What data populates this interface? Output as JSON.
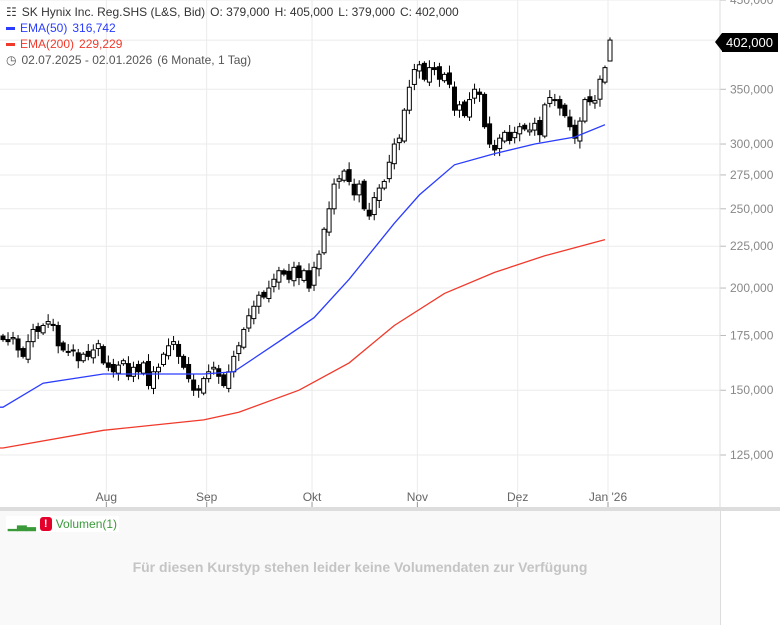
{
  "header": {
    "title": "SK Hynix Inc. Reg.SHS (L&S, Bid)",
    "open": "O: 379,000",
    "high": "H: 405,000",
    "low": "L: 379,000",
    "close": "C: 402,000",
    "ema50_label": "EMA(50)",
    "ema50_value": "316,742",
    "ema200_label": "EMA(200)",
    "ema200_value": "229,229",
    "range": "02.07.2025 - 02.01.2026",
    "range_desc": "(6 Monate, 1 Tag)"
  },
  "last_price": "402,000",
  "volume": {
    "label": "Volumen(1)",
    "message": "Für diesen Kurstyp stehen leider keine Volumendaten zur Verfügung"
  },
  "colors": {
    "ema50": "#2a3cff",
    "ema200": "#f0392b",
    "candle": "#000000"
  },
  "chart_data": {
    "type": "candlestick",
    "scale": "log",
    "ylim": [
      125000,
      450000
    ],
    "yticks": [
      125000,
      150000,
      175000,
      200000,
      225000,
      250000,
      275000,
      300000,
      350000,
      402000,
      450000
    ],
    "ytick_labels": [
      "125,000",
      "150,000",
      "175,000",
      "200,000",
      "225,000",
      "250,000",
      "275,000",
      "300,000",
      "350,000",
      "",
      "450,000"
    ],
    "xticks": [
      {
        "label": "Aug",
        "index": 21
      },
      {
        "label": "Sep",
        "index": 41
      },
      {
        "label": "Okt",
        "index": 62
      },
      {
        "label": "Nov",
        "index": 83
      },
      {
        "label": "Dez",
        "index": 103
      },
      {
        "label": "Jan '26",
        "index": 121
      }
    ],
    "close": [
      173,
      172,
      174,
      168,
      165,
      172,
      178,
      177,
      180,
      182,
      180,
      170,
      168,
      167,
      168,
      163,
      166,
      165,
      168,
      171,
      162,
      160,
      158,
      161,
      163,
      156,
      160,
      158,
      162,
      152,
      158,
      160,
      166,
      170,
      172,
      165,
      160,
      155,
      150,
      150,
      155,
      158,
      160,
      156,
      152,
      158,
      165,
      170,
      178,
      185,
      190,
      196,
      195,
      200,
      205,
      210,
      208,
      205,
      212,
      206,
      210,
      200,
      212,
      220,
      236,
      250,
      268,
      272,
      278,
      270,
      260,
      268,
      250,
      245,
      258,
      265,
      270,
      285,
      300,
      305,
      330,
      352,
      370,
      375,
      360,
      372,
      370,
      360,
      365,
      355,
      330,
      335,
      325,
      340,
      350,
      345,
      315,
      300,
      295,
      305,
      310,
      303,
      310,
      315,
      313,
      312,
      318,
      308,
      335,
      342,
      340,
      332,
      325,
      315,
      305,
      320,
      340,
      338,
      339,
      360,
      372,
      402
    ],
    "last_ohlc": [
      379,
      405,
      379,
      402
    ],
    "unit": "thousand KRW",
    "ema50": [
      [
        0,
        143
      ],
      [
        8,
        153
      ],
      [
        20,
        157
      ],
      [
        40,
        157
      ],
      [
        46,
        158
      ],
      [
        55,
        172
      ],
      [
        62,
        184
      ],
      [
        69,
        205
      ],
      [
        78,
        240
      ],
      [
        83,
        260
      ],
      [
        90,
        283
      ],
      [
        98,
        292
      ],
      [
        106,
        300
      ],
      [
        114,
        306
      ],
      [
        120,
        316.742
      ]
    ],
    "ema200": [
      [
        0,
        127.5
      ],
      [
        20,
        134
      ],
      [
        40,
        138
      ],
      [
        47,
        141
      ],
      [
        59,
        150
      ],
      [
        69,
        162
      ],
      [
        78,
        180
      ],
      [
        88,
        197
      ],
      [
        98,
        209
      ],
      [
        108,
        219
      ],
      [
        120,
        229.229
      ]
    ]
  }
}
